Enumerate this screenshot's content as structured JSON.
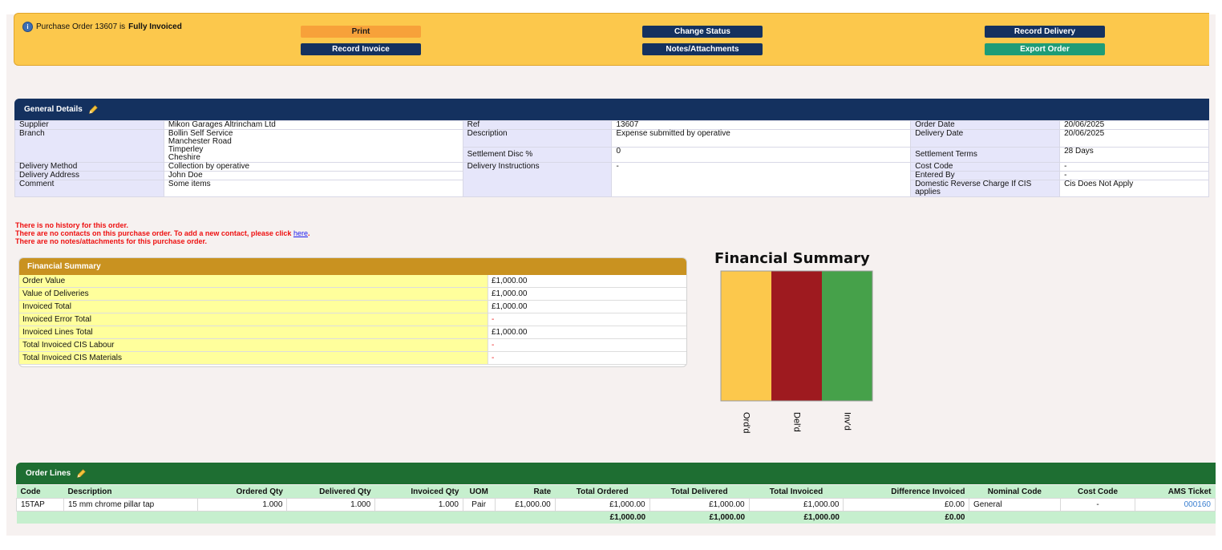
{
  "status": {
    "prefix": "Purchase Order 13607 is",
    "state": "Fully Invoiced"
  },
  "buttons": {
    "print": "Print",
    "record_invoice": "Record Invoice",
    "change_status": "Change Status",
    "notes_attachments": "Notes/Attachments",
    "record_delivery": "Record Delivery",
    "export_order": "Export Order"
  },
  "general": {
    "title": "General Details",
    "supplier_label": "Supplier",
    "supplier": "Mikon Garages Altrincham Ltd",
    "branch_label": "Branch",
    "branch_line1": "Bollin Self Service",
    "branch_line2": "Manchester Road",
    "branch_line3": "Timperley",
    "branch_line4": "Cheshire",
    "delivery_method_label": "Delivery Method",
    "delivery_method": "Collection by operative",
    "delivery_address_label": "Delivery Address",
    "delivery_address": "John Doe",
    "comment_label": "Comment",
    "comment": "Some items",
    "ref_label": "Ref",
    "ref": "13607",
    "description_label": "Description",
    "description": "Expense submitted by operative",
    "settlement_disc_label": "Settlement Disc %",
    "settlement_disc": "0",
    "delivery_instructions_label": "Delivery Instructions",
    "delivery_instructions": "-",
    "order_date_label": "Order Date",
    "order_date": "20/06/2025",
    "delivery_date_label": "Delivery Date",
    "delivery_date": "20/06/2025",
    "settlement_terms_label": "Settlement Terms",
    "settlement_terms": "28 Days",
    "cost_code_label": "Cost Code",
    "cost_code": "-",
    "entered_by_label": "Entered By",
    "entered_by": "-",
    "drc_label": "Domestic Reverse Charge If CIS applies",
    "drc": "Cis Does Not Apply"
  },
  "messages": {
    "no_history": "There is no history for this order.",
    "no_contacts": "There are no contacts on this purchase order. To add a new contact, please click",
    "here_link": "here",
    "no_notes": "There are no notes/attachments for this purchase order."
  },
  "financial": {
    "title": "Financial Summary",
    "rows": [
      {
        "label": "Order Value",
        "value": "£1,000.00"
      },
      {
        "label": "Value of Deliveries",
        "value": "£1,000.00"
      },
      {
        "label": "Invoiced Total",
        "value": "£1,000.00"
      },
      {
        "label": "Invoiced Error Total",
        "value": "-"
      },
      {
        "label": "Invoiced Lines Total",
        "value": "£1,000.00"
      },
      {
        "label": "Total Invoiced CIS Labour",
        "value": "-"
      },
      {
        "label": "Total Invoiced CIS Materials",
        "value": "-"
      }
    ]
  },
  "chart_data": {
    "type": "bar",
    "title": "Financial Summary",
    "categories": [
      "Ord'd",
      "Del'd",
      "Inv'd"
    ],
    "values": [
      1000,
      1000,
      1000
    ],
    "colors": [
      "#fcc84c",
      "#9e1a1f",
      "#46a14a"
    ],
    "ylim": [
      0,
      1000
    ],
    "grid": false
  },
  "order_lines": {
    "title": "Order Lines",
    "headers": [
      "Code",
      "Description",
      "Ordered Qty",
      "Delivered Qty",
      "Invoiced Qty",
      "UOM",
      "Rate",
      "Total Ordered",
      "Total Delivered",
      "Total Invoiced",
      "Difference Invoiced",
      "Nominal Code",
      "Cost Code",
      "AMS Ticket"
    ],
    "rows": [
      [
        "15TAP",
        "15 mm chrome pillar tap",
        "1.000",
        "1.000",
        "1.000",
        "Pair",
        "£1,000.00",
        "£1,000.00",
        "£1,000.00",
        "£1,000.00",
        "£0.00",
        "General",
        "-",
        "000160"
      ]
    ],
    "totals": {
      "total_ordered": "£1,000.00",
      "total_delivered": "£1,000.00",
      "total_invoiced": "£1,000.00",
      "difference_invoiced": "£0.00"
    }
  },
  "colors": {
    "status_bar": "#fcc84c",
    "navy": "#14315f",
    "green_header": "#1e6e32",
    "gold_header": "#c99220",
    "alert_red": "#e11111"
  }
}
